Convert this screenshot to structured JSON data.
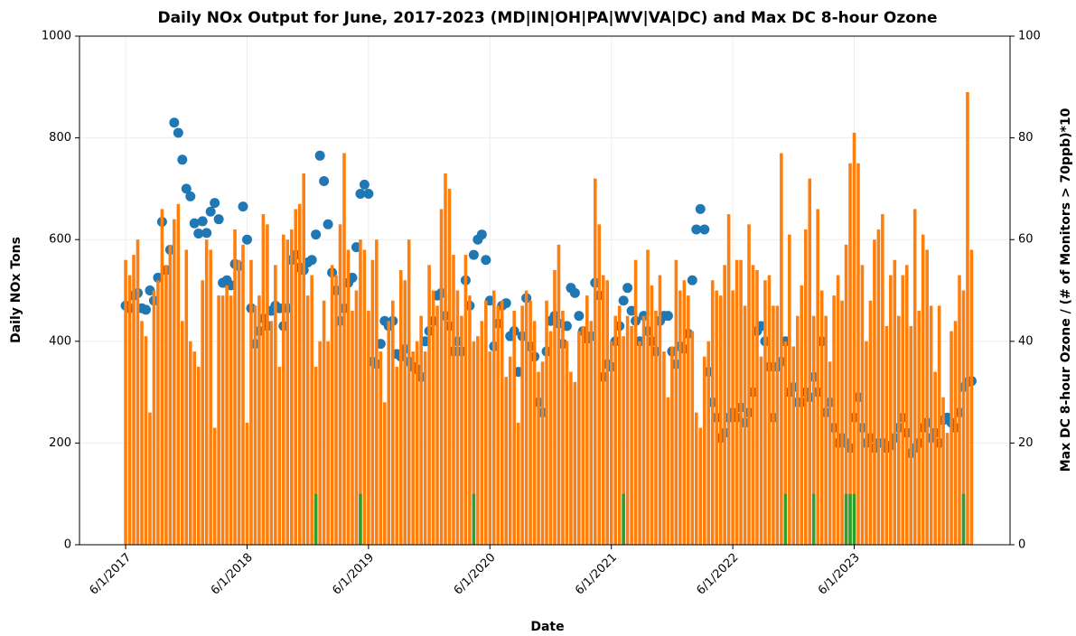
{
  "chart_data": {
    "type": "scatter_bar",
    "title": "Daily NOx Output for June, 2017-2023 (MD|IN|OH|PA|WV|VA|DC) and Max DC 8-hour Ozone",
    "xlabel": "Date",
    "ylabel": "Daily NOx Tons",
    "y2label": "Max DC 8-hour Ozone / (# of Monitors > 70ppb)*10",
    "x": [
      0,
      1,
      2,
      3,
      4,
      5,
      6,
      7,
      8,
      9,
      10,
      11,
      12,
      13,
      14,
      15,
      16,
      17,
      18,
      19,
      20,
      21,
      22,
      23,
      24,
      25,
      26,
      27,
      28,
      29,
      30,
      31,
      32,
      33,
      34,
      35,
      36,
      37,
      38,
      39,
      40,
      41,
      42,
      43,
      44,
      45,
      46,
      47,
      48,
      49,
      50,
      51,
      52,
      53,
      54,
      55,
      56,
      57,
      58,
      59,
      60,
      61,
      62,
      63,
      64,
      65,
      66,
      67,
      68,
      69,
      70,
      71,
      72,
      73,
      74,
      75,
      76,
      77,
      78,
      79,
      80,
      81,
      82,
      83,
      84,
      85,
      86,
      87,
      88,
      89,
      90,
      91,
      92,
      93,
      94,
      95,
      96,
      97,
      98,
      99,
      100,
      101,
      102,
      103,
      104,
      105,
      106,
      107,
      108,
      109,
      110,
      111,
      112,
      113,
      114,
      115,
      116,
      117,
      118,
      119,
      120,
      121,
      122,
      123,
      124,
      125,
      126,
      127,
      128,
      129,
      130,
      131,
      132,
      133,
      134,
      135,
      136,
      137,
      138,
      139,
      140,
      141,
      142,
      143,
      144,
      145,
      146,
      147,
      148,
      149,
      150,
      151,
      152,
      153,
      154,
      155,
      156,
      157,
      158,
      159,
      160,
      161,
      162,
      163,
      164,
      165,
      166,
      167,
      168,
      169,
      170,
      171,
      172,
      173,
      174,
      175,
      176,
      177,
      178,
      179,
      180,
      181,
      182,
      183,
      184,
      185,
      186,
      187,
      188,
      189,
      190,
      191,
      192,
      193,
      194,
      195,
      196,
      197,
      198,
      199,
      200,
      201,
      202,
      203,
      204,
      205,
      206,
      207,
      208,
      209
    ],
    "xlim": [
      -11.4,
      218.5
    ],
    "xticks": [
      {
        "value": 0,
        "label": "6/1/2017"
      },
      {
        "value": 30,
        "label": "6/1/2018"
      },
      {
        "value": 60,
        "label": "6/1/2019"
      },
      {
        "value": 90,
        "label": "6/1/2020"
      },
      {
        "value": 120,
        "label": "6/1/2021"
      },
      {
        "value": 150,
        "label": "6/1/2022"
      },
      {
        "value": 180,
        "label": "6/1/2023"
      }
    ],
    "ylim": [
      0,
      1000
    ],
    "yticks": [
      0,
      200,
      400,
      600,
      800,
      1000
    ],
    "y2lim": [
      0,
      100
    ],
    "y2ticks": [
      0,
      20,
      40,
      60,
      80,
      100
    ],
    "grid": true,
    "series": [
      {
        "kind": "scatter",
        "color": "#1f77b4",
        "values": [
          470,
          465,
          490,
          495,
          465,
          462,
          500,
          480,
          525,
          635,
          540,
          580,
          830,
          810,
          757,
          700,
          685,
          632,
          612,
          636,
          613,
          655,
          672,
          640,
          515,
          520,
          510,
          552,
          548,
          665,
          600,
          465,
          395,
          420,
          445,
          430,
          460,
          470,
          465,
          430,
          465,
          560,
          570,
          545,
          540,
          555,
          560,
          610,
          765,
          715,
          630,
          535,
          500,
          440,
          465,
          515,
          525,
          585,
          690,
          708,
          690,
          360,
          355,
          395,
          440,
          430,
          440,
          375,
          370,
          385,
          360,
          350,
          345,
          330,
          400,
          420,
          440,
          490,
          495,
          450,
          430,
          380,
          400,
          380,
          520,
          470,
          570,
          600,
          610,
          560,
          480,
          390,
          435,
          470,
          475,
          410,
          420,
          340,
          410,
          485,
          390,
          370,
          280,
          260,
          380,
          440,
          450,
          435,
          395,
          430,
          505,
          495,
          450,
          420,
          405,
          410,
          515,
          490,
          330,
          355,
          350,
          400,
          430,
          480,
          505,
          460,
          440,
          400,
          450,
          420,
          400,
          380,
          440,
          450,
          450,
          380,
          355,
          390,
          385,
          415,
          520,
          620,
          660,
          620,
          340,
          280,
          250,
          210,
          220,
          250,
          260,
          250,
          270,
          240,
          260,
          300,
          420,
          430,
          400,
          350,
          250,
          350,
          360,
          400,
          300,
          310,
          280,
          280,
          300,
          290,
          330,
          300,
          400,
          260,
          280,
          230,
          200,
          210,
          200,
          190,
          250,
          290,
          230,
          200,
          210,
          190,
          200,
          200,
          190,
          195,
          210,
          230,
          250,
          220,
          180,
          190,
          200,
          230,
          240,
          210,
          220,
          200,
          245,
          250,
          240,
          230,
          260,
          310,
          320,
          322
        ]
      },
      {
        "kind": "bar",
        "axis": "y2",
        "color": "#ff7f0e",
        "values": [
          56,
          53,
          57,
          60,
          44,
          41,
          26,
          50,
          52,
          66,
          55,
          59,
          64,
          67,
          44,
          58,
          40,
          38,
          35,
          52,
          60,
          58,
          23,
          49,
          49,
          51,
          49,
          62,
          56,
          59,
          24,
          56,
          47,
          49,
          65,
          63,
          44,
          55,
          35,
          61,
          60,
          62,
          66,
          67,
          73,
          49,
          53,
          35,
          40,
          48,
          40,
          55,
          53,
          63,
          77,
          58,
          46,
          50,
          60,
          58,
          46,
          56,
          60,
          38,
          28,
          44,
          48,
          35,
          54,
          52,
          60,
          38,
          40,
          45,
          38,
          55,
          50,
          47,
          66,
          73,
          70,
          57,
          50,
          45,
          57,
          49,
          40,
          41,
          44,
          48,
          38,
          50,
          47,
          48,
          33,
          37,
          46,
          24,
          47,
          50,
          48,
          44,
          34,
          36,
          48,
          42,
          54,
          59,
          46,
          40,
          34,
          32,
          42,
          43,
          49,
          44,
          72,
          63,
          53,
          52,
          40,
          45,
          47,
          41,
          45,
          43,
          56,
          40,
          45,
          58,
          51,
          46,
          53,
          38,
          29,
          39,
          56,
          50,
          52,
          49,
          42,
          26,
          23,
          37,
          40,
          52,
          50,
          49,
          55,
          65,
          50,
          56,
          56,
          47,
          63,
          55,
          54,
          37,
          52,
          53,
          47,
          47,
          77,
          40,
          61,
          39,
          45,
          51,
          62,
          72,
          45,
          66,
          50,
          45,
          36,
          49,
          53,
          48,
          59,
          75,
          81,
          75,
          55,
          40,
          48,
          60,
          62,
          65,
          43,
          53,
          56,
          45,
          53,
          55,
          43,
          66,
          46,
          61,
          58,
          47,
          34,
          47,
          29,
          22,
          42,
          44,
          53,
          50,
          89,
          58
        ]
      },
      {
        "kind": "bar",
        "axis": "y2",
        "color": "#2ca02c",
        "x": [
          47,
          58,
          86,
          123,
          163,
          170,
          178,
          179,
          180,
          207
        ],
        "values": [
          10,
          10,
          10,
          10,
          10,
          10,
          10,
          10,
          10,
          10
        ]
      }
    ]
  }
}
